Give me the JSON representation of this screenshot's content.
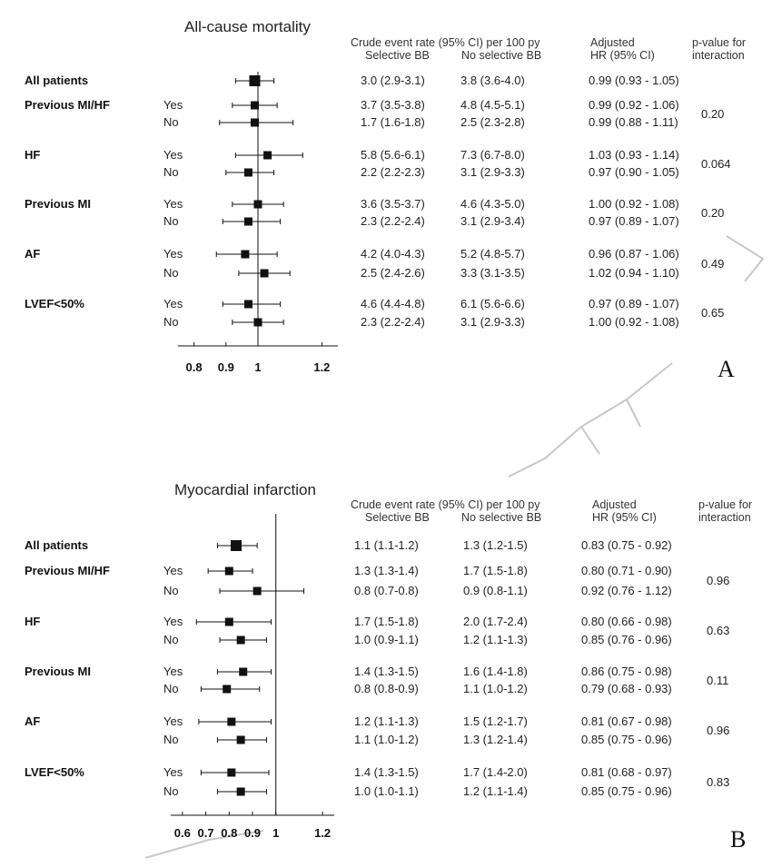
{
  "headers": {
    "crude": "Crude event rate (95% CI) per 100 py",
    "selective": "Selective BB",
    "noselective": "No selective BB",
    "adjusted1": "Adjusted",
    "adjusted2": "HR (95% CI)",
    "pval1": "p-value for",
    "pval2": "interaction"
  },
  "colors": {
    "ink": "#111111",
    "watermark": "#c8c8c8"
  },
  "chart_data": [
    {
      "type": "forest",
      "title": "All-cause mortality",
      "panel_label": "A",
      "xlim": [
        0.75,
        1.25
      ],
      "xticks": [
        0.8,
        0.9,
        1,
        1.2
      ],
      "xtick_labels": [
        "0.8",
        "0.9",
        "1",
        "1.2"
      ],
      "ref_line": 1,
      "groups": [
        {
          "name": "All patients",
          "p_interaction": "",
          "rows": [
            {
              "sub": "",
              "sel": "3.0 (2.9-3.1)",
              "nosel": "3.8 (3.6-4.0)",
              "hr_text": "0.99 (0.93 - 1.05)",
              "hr": 0.99,
              "lo": 0.93,
              "hi": 1.05
            }
          ]
        },
        {
          "name": "Previous MI/HF",
          "p_interaction": "0.20",
          "rows": [
            {
              "sub": "Yes",
              "sel": "3.7 (3.5-3.8)",
              "nosel": "4.8 (4.5-5.1)",
              "hr_text": "0.99 (0.92 - 1.06)",
              "hr": 0.99,
              "lo": 0.92,
              "hi": 1.06
            },
            {
              "sub": "No",
              "sel": "1.7 (1.6-1.8)",
              "nosel": "2.5 (2.3-2.8)",
              "hr_text": "0.99 (0.88 - 1.11)",
              "hr": 0.99,
              "lo": 0.88,
              "hi": 1.11
            }
          ]
        },
        {
          "name": "HF",
          "p_interaction": "0.064",
          "rows": [
            {
              "sub": "Yes",
              "sel": "5.8 (5.6-6.1)",
              "nosel": "7.3 (6.7-8.0)",
              "hr_text": "1.03 (0.93 - 1.14)",
              "hr": 1.03,
              "lo": 0.93,
              "hi": 1.14
            },
            {
              "sub": "No",
              "sel": "2.2 (2.2-2.3)",
              "nosel": "3.1 (2.9-3.3)",
              "hr_text": "0.97 (0.90 - 1.05)",
              "hr": 0.97,
              "lo": 0.9,
              "hi": 1.05
            }
          ]
        },
        {
          "name": "Previous MI",
          "p_interaction": "0.20",
          "rows": [
            {
              "sub": "Yes",
              "sel": "3.6 (3.5-3.7)",
              "nosel": "4.6 (4.3-5.0)",
              "hr_text": "1.00 (0.92 - 1.08)",
              "hr": 1.0,
              "lo": 0.92,
              "hi": 1.08
            },
            {
              "sub": "No",
              "sel": "2.3 (2.2-2.4)",
              "nosel": "3.1 (2.9-3.4)",
              "hr_text": "0.97 (0.89 - 1.07)",
              "hr": 0.97,
              "lo": 0.89,
              "hi": 1.07
            }
          ]
        },
        {
          "name": "AF",
          "p_interaction": "0.49",
          "rows": [
            {
              "sub": "Yes",
              "sel": "4.2 (4.0-4.3)",
              "nosel": "5.2 (4.8-5.7)",
              "hr_text": "0.96 (0.87 - 1.06)",
              "hr": 0.96,
              "lo": 0.87,
              "hi": 1.06
            },
            {
              "sub": "No",
              "sel": "2.5 (2.4-2.6)",
              "nosel": "3.3 (3.1-3.5)",
              "hr_text": "1.02 (0.94 - 1.10)",
              "hr": 1.02,
              "lo": 0.94,
              "hi": 1.1
            }
          ]
        },
        {
          "name": "LVEF<50%",
          "p_interaction": "0.65",
          "rows": [
            {
              "sub": "Yes",
              "sel": "4.6 (4.4-4.8)",
              "nosel": "6.1 (5.6-6.6)",
              "hr_text": "0.97 (0.89 - 1.07)",
              "hr": 0.97,
              "lo": 0.89,
              "hi": 1.07
            },
            {
              "sub": "No",
              "sel": "2.3 (2.2-2.4)",
              "nosel": "3.1 (2.9-3.3)",
              "hr_text": "1.00 (0.92 - 1.08)",
              "hr": 1.0,
              "lo": 0.92,
              "hi": 1.08
            }
          ]
        }
      ]
    },
    {
      "type": "forest",
      "title": "Myocardial infarction",
      "panel_label": "B",
      "xlim": [
        0.55,
        1.25
      ],
      "xticks": [
        0.6,
        0.7,
        0.8,
        0.9,
        1,
        1.2
      ],
      "xtick_labels": [
        "0.6",
        "0.7",
        "0.8",
        "0.9",
        "1",
        "1.2"
      ],
      "ref_line": 1,
      "groups": [
        {
          "name": "All patients",
          "p_interaction": "",
          "rows": [
            {
              "sub": "",
              "sel": "1.1 (1.1-1.2)",
              "nosel": "1.3 (1.2-1.5)",
              "hr_text": "0.83 (0.75 - 0.92)",
              "hr": 0.83,
              "lo": 0.75,
              "hi": 0.92
            }
          ]
        },
        {
          "name": "Previous MI/HF",
          "p_interaction": "0.96",
          "rows": [
            {
              "sub": "Yes",
              "sel": "1.3 (1.3-1.4)",
              "nosel": "1.7 (1.5-1.8)",
              "hr_text": "0.80 (0.71 - 0.90)",
              "hr": 0.8,
              "lo": 0.71,
              "hi": 0.9
            },
            {
              "sub": "No",
              "sel": "0.8 (0.7-0.8)",
              "nosel": "0.9 (0.8-1.1)",
              "hr_text": "0.92 (0.76 - 1.12)",
              "hr": 0.92,
              "lo": 0.76,
              "hi": 1.12
            }
          ]
        },
        {
          "name": "HF",
          "p_interaction": "0.63",
          "rows": [
            {
              "sub": "Yes",
              "sel": "1.7 (1.5-1.8)",
              "nosel": "2.0 (1.7-2.4)",
              "hr_text": "0.80 (0.66 - 0.98)",
              "hr": 0.8,
              "lo": 0.66,
              "hi": 0.98
            },
            {
              "sub": "No",
              "sel": "1.0 (0.9-1.1)",
              "nosel": "1.2 (1.1-1.3)",
              "hr_text": "0.85 (0.76 - 0.96)",
              "hr": 0.85,
              "lo": 0.76,
              "hi": 0.96
            }
          ]
        },
        {
          "name": "Previous MI",
          "p_interaction": "0.11",
          "rows": [
            {
              "sub": "Yes",
              "sel": "1.4 (1.3-1.5)",
              "nosel": "1.6 (1.4-1.8)",
              "hr_text": "0.86 (0.75 - 0.98)",
              "hr": 0.86,
              "lo": 0.75,
              "hi": 0.98
            },
            {
              "sub": "No",
              "sel": "0.8 (0.8-0.9)",
              "nosel": "1.1 (1.0-1.2)",
              "hr_text": "0.79 (0.68 - 0.93)",
              "hr": 0.79,
              "lo": 0.68,
              "hi": 0.93
            }
          ]
        },
        {
          "name": "AF",
          "p_interaction": "0.96",
          "rows": [
            {
              "sub": "Yes",
              "sel": "1.2 (1.1-1.3)",
              "nosel": "1.5 (1.2-1.7)",
              "hr_text": "0.81 (0.67 - 0.98)",
              "hr": 0.81,
              "lo": 0.67,
              "hi": 0.98
            },
            {
              "sub": "No",
              "sel": "1.1 (1.0-1.2)",
              "nosel": "1.3 (1.2-1.4)",
              "hr_text": "0.85 (0.75 - 0.96)",
              "hr": 0.85,
              "lo": 0.75,
              "hi": 0.96
            }
          ]
        },
        {
          "name": "LVEF<50%",
          "p_interaction": "0.83",
          "rows": [
            {
              "sub": "Yes",
              "sel": "1.4 (1.3-1.5)",
              "nosel": "1.7 (1.4-2.0)",
              "hr_text": "0.81 (0.68 - 0.97)",
              "hr": 0.81,
              "lo": 0.68,
              "hi": 0.97
            },
            {
              "sub": "No",
              "sel": "1.0 (1.0-1.1)",
              "nosel": "1.2 (1.1-1.4)",
              "hr_text": "0.85 (0.75 - 0.96)",
              "hr": 0.85,
              "lo": 0.75,
              "hi": 0.96
            }
          ]
        }
      ]
    }
  ]
}
